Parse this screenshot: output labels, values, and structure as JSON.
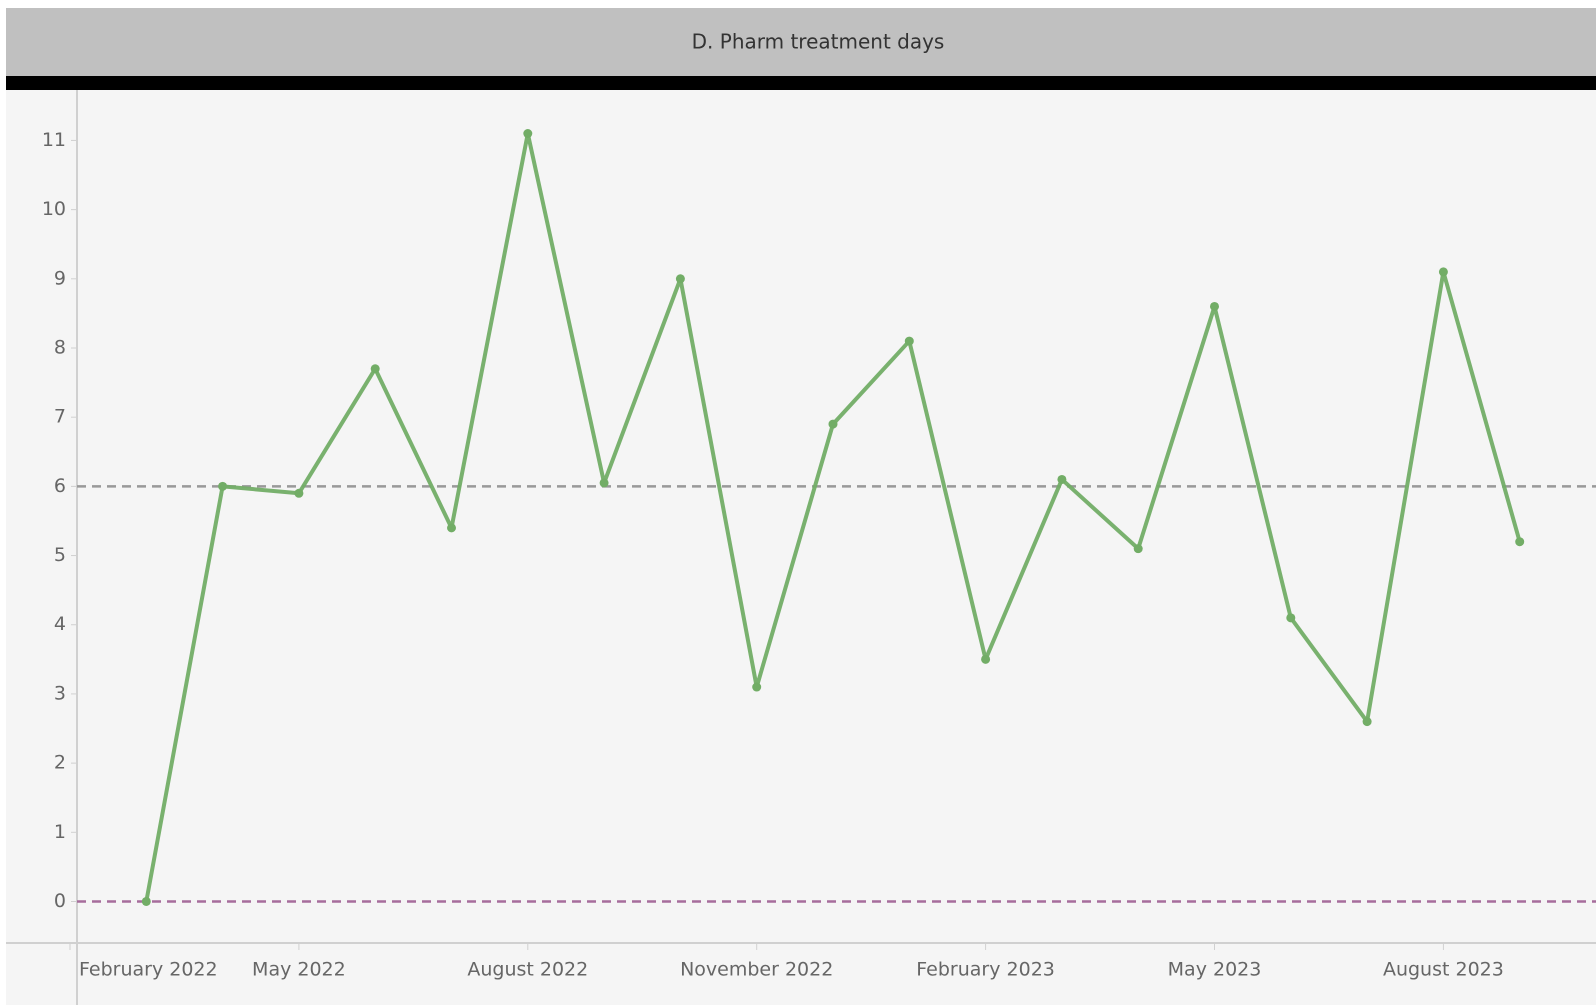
{
  "chart_data": {
    "type": "line",
    "title": "D. Pharm treatment days",
    "x": [
      "2022-03",
      "2022-04",
      "2022-05",
      "2022-06",
      "2022-07",
      "2022-08",
      "2022-09",
      "2022-10",
      "2022-11",
      "2022-12",
      "2023-01",
      "2023-02",
      "2023-03",
      "2023-04",
      "2023-05",
      "2023-06",
      "2023-07",
      "2023-08",
      "2023-09"
    ],
    "series": [
      {
        "color": "#72ad66",
        "values": [
          0,
          6.0,
          5.9,
          7.7,
          5.4,
          11.1,
          6.05,
          9.0,
          3.1,
          6.9,
          8.1,
          3.5,
          6.1,
          5.1,
          8.6,
          4.1,
          2.6,
          9.1,
          5.2
        ]
      }
    ],
    "xlim": [
      "2022-02",
      "2023-10"
    ],
    "xticks": [
      {
        "value": "2022-02",
        "label": "February 2022"
      },
      {
        "value": "2022-05",
        "label": "May 2022"
      },
      {
        "value": "2022-08",
        "label": "August 2022"
      },
      {
        "value": "2022-11",
        "label": "November 2022"
      },
      {
        "value": "2023-02",
        "label": "February 2023"
      },
      {
        "value": "2023-05",
        "label": "May 2023"
      },
      {
        "value": "2023-08",
        "label": "August 2023"
      }
    ],
    "ylim": [
      -0.6,
      11.7
    ],
    "yticks": [
      0,
      1,
      2,
      3,
      4,
      5,
      6,
      7,
      8,
      9,
      10,
      11
    ],
    "reference_lines": [
      {
        "value": 6,
        "color": "#999999"
      },
      {
        "value": 0,
        "color": "#a66d9c"
      }
    ]
  }
}
